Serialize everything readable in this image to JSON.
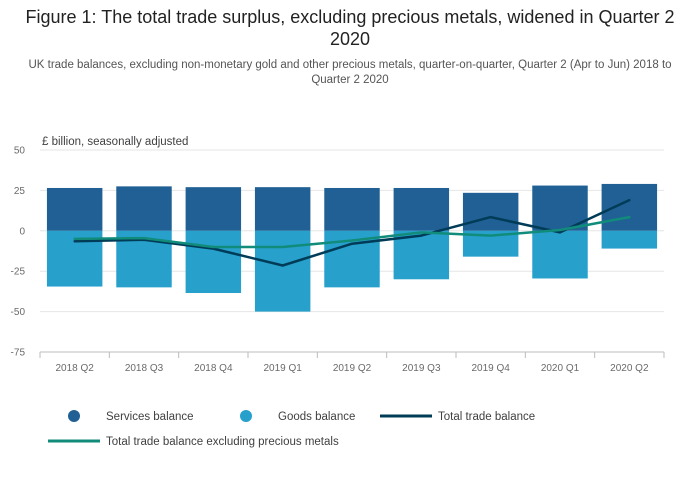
{
  "title": "Figure 1: The total trade surplus, excluding precious metals, widened in Quarter 2 2020",
  "subtitle": "UK trade balances, excluding non-monetary gold and other precious metals, quarter-on-quarter, Quarter 2 (Apr to Jun) 2018 to Quarter 2 2020",
  "colors": {
    "services": "#206095",
    "goods": "#27a0cc",
    "total": "#003c57",
    "total_excl": "#118c7b"
  },
  "chart_data": {
    "type": "bar",
    "unit_label": "£ billion, seasonally adjusted",
    "categories": [
      "2018 Q2",
      "2018 Q3",
      "2018 Q4",
      "2019 Q1",
      "2019 Q2",
      "2019 Q3",
      "2019 Q4",
      "2020 Q1",
      "2020 Q2"
    ],
    "ylim": [
      -75,
      50
    ],
    "yticks": [
      50,
      25,
      0,
      -25,
      -50,
      -75
    ],
    "grid": true,
    "legend_position": "bottom",
    "series": [
      {
        "name": "Services balance",
        "kind": "bar",
        "values": [
          26.5,
          27.5,
          27,
          27,
          26.5,
          26.5,
          23.5,
          28,
          29
        ]
      },
      {
        "name": "Goods balance",
        "kind": "bar",
        "values": [
          -34.5,
          -35,
          -38.5,
          -50,
          -35,
          -30,
          -16,
          -29.5,
          -11
        ]
      },
      {
        "name": "Total trade balance",
        "kind": "line",
        "values": [
          -6.5,
          -5.5,
          -11,
          -21.5,
          -8,
          -3,
          8.5,
          -1,
          19
        ]
      },
      {
        "name": "Total trade balance excluding precious metals",
        "kind": "line",
        "values": [
          -5,
          -4.5,
          -10,
          -10,
          -6,
          -1,
          -3,
          0.5,
          8.5
        ]
      }
    ]
  }
}
